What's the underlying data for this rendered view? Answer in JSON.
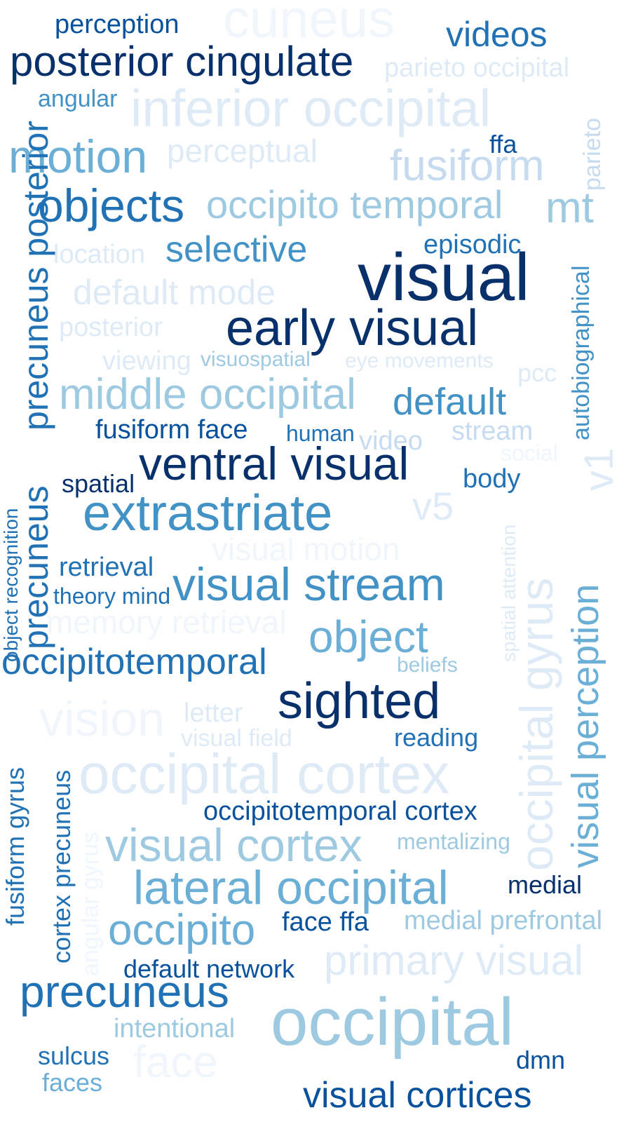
{
  "palette": {
    "darkest": "#08306b",
    "dark": "#08519c",
    "medium_dark": "#2171b5",
    "medium": "#4292c6",
    "medium_light": "#6baed6",
    "light": "#9ecae1",
    "lighter": "#c6dbef",
    "lightest": "#deebf7",
    "faint": "#f1f6fc"
  },
  "words": [
    {
      "text": "perception",
      "color": "#08519c"
    },
    {
      "text": "cuneus",
      "color": "#f1f6fc"
    },
    {
      "text": "videos",
      "color": "#2171b5"
    },
    {
      "text": "posterior cingulate",
      "color": "#08306b"
    },
    {
      "text": "parieto occipital",
      "color": "#deebf7"
    },
    {
      "text": "angular",
      "color": "#4292c6"
    },
    {
      "text": "inferior occipital",
      "color": "#deebf7"
    },
    {
      "text": "parieto",
      "color": "#c6dbef"
    },
    {
      "text": "motion",
      "color": "#6baed6"
    },
    {
      "text": "perceptual",
      "color": "#deebf7"
    },
    {
      "text": "ffa",
      "color": "#08519c"
    },
    {
      "text": "fusiform",
      "color": "#c6dbef"
    },
    {
      "text": "objects",
      "color": "#2171b5"
    },
    {
      "text": "occipito temporal",
      "color": "#9ecae1"
    },
    {
      "text": "mt",
      "color": "#9ecae1"
    },
    {
      "text": "autobiographical",
      "color": "#4292c6"
    },
    {
      "text": "location",
      "color": "#deebf7"
    },
    {
      "text": "selective",
      "color": "#4292c6"
    },
    {
      "text": "episodic",
      "color": "#2171b5"
    },
    {
      "text": "visual",
      "color": "#08306b"
    },
    {
      "text": "precuneus posterior",
      "color": "#2171b5"
    },
    {
      "text": "default mode",
      "color": "#deebf7"
    },
    {
      "text": "posterior",
      "color": "#deebf7"
    },
    {
      "text": "early visual",
      "color": "#08306b"
    },
    {
      "text": "viewing",
      "color": "#deebf7"
    },
    {
      "text": "visuospatial",
      "color": "#9ecae1"
    },
    {
      "text": "eye movements",
      "color": "#deebf7"
    },
    {
      "text": "pcc",
      "color": "#deebf7"
    },
    {
      "text": "middle occipital",
      "color": "#9ecae1"
    },
    {
      "text": "default",
      "color": "#4292c6"
    },
    {
      "text": "v1",
      "color": "#deebf7"
    },
    {
      "text": "fusiform face",
      "color": "#08519c"
    },
    {
      "text": "human",
      "color": "#2171b5"
    },
    {
      "text": "video",
      "color": "#c6dbef"
    },
    {
      "text": "stream",
      "color": "#c6dbef"
    },
    {
      "text": "social",
      "color": "#f1f6fc"
    },
    {
      "text": "object recognition",
      "color": "#2171b5"
    },
    {
      "text": "ventral visual",
      "color": "#08306b"
    },
    {
      "text": "spatial",
      "color": "#08306b"
    },
    {
      "text": "body",
      "color": "#2171b5"
    },
    {
      "text": "extrastriate",
      "color": "#4292c6"
    },
    {
      "text": "v5",
      "color": "#deebf7"
    },
    {
      "text": "spatial attention",
      "color": "#deebf7"
    },
    {
      "text": "occipital gyrus",
      "color": "#deebf7"
    },
    {
      "text": "visual motion",
      "color": "#f1f6fc"
    },
    {
      "text": "precuneus",
      "color": "#2171b5"
    },
    {
      "text": "retrieval",
      "color": "#2171b5"
    },
    {
      "text": "visual stream",
      "color": "#4292c6"
    },
    {
      "text": "visual perception",
      "color": "#6baed6"
    },
    {
      "text": "theory mind",
      "color": "#2171b5"
    },
    {
      "text": "memory retrieval",
      "color": "#f1f6fc"
    },
    {
      "text": "object",
      "color": "#6baed6"
    },
    {
      "text": "occipitotemporal",
      "color": "#2171b5"
    },
    {
      "text": "beliefs",
      "color": "#9ecae1"
    },
    {
      "text": "sighted",
      "color": "#08306b"
    },
    {
      "text": "vision",
      "color": "#f1f6fc"
    },
    {
      "text": "letter",
      "color": "#deebf7"
    },
    {
      "text": "visual field",
      "color": "#deebf7"
    },
    {
      "text": "reading",
      "color": "#2171b5"
    },
    {
      "text": "fusiform gyrus",
      "color": "#2171b5"
    },
    {
      "text": "cortex precuneus",
      "color": "#2171b5"
    },
    {
      "text": "occipital cortex",
      "color": "#deebf7"
    },
    {
      "text": "angular gyrus",
      "color": "#f1f6fc"
    },
    {
      "text": "occipitotemporal cortex",
      "color": "#08519c"
    },
    {
      "text": "visual cortex",
      "color": "#9ecae1"
    },
    {
      "text": "mentalizing",
      "color": "#9ecae1"
    },
    {
      "text": "lateral occipital",
      "color": "#6baed6"
    },
    {
      "text": "medial",
      "color": "#08306b"
    },
    {
      "text": "occipito",
      "color": "#6baed6"
    },
    {
      "text": "face ffa",
      "color": "#08519c"
    },
    {
      "text": "medial prefrontal",
      "color": "#9ecae1"
    },
    {
      "text": "default network",
      "color": "#08519c"
    },
    {
      "text": "primary visual",
      "color": "#deebf7"
    },
    {
      "text": "precuneus",
      "color": "#2171b5"
    },
    {
      "text": "occipital",
      "color": "#9ecae1"
    },
    {
      "text": "intentional",
      "color": "#9ecae1"
    },
    {
      "text": "sulcus",
      "color": "#2171b5"
    },
    {
      "text": "face",
      "color": "#f1f6fc"
    },
    {
      "text": "dmn",
      "color": "#08519c"
    },
    {
      "text": "faces",
      "color": "#6baed6"
    },
    {
      "text": "visual cortices",
      "color": "#08519c"
    }
  ]
}
